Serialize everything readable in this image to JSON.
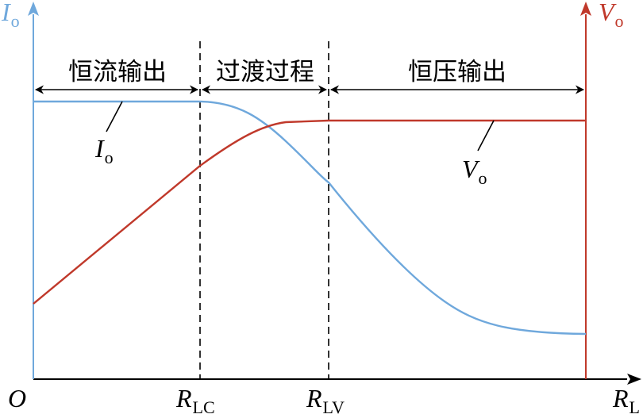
{
  "axes": {
    "origin": "O",
    "x_label": {
      "main": "R",
      "sub": "L"
    },
    "y_left_label": {
      "main": "I",
      "sub": "o"
    },
    "y_right_label": {
      "main": "V",
      "sub": "o"
    }
  },
  "boundaries": [
    {
      "main": "R",
      "sub": "LC"
    },
    {
      "main": "R",
      "sub": "LV"
    }
  ],
  "regions": [
    {
      "label": "恒流输出"
    },
    {
      "label": "过渡过程"
    },
    {
      "label": "恒压输出"
    }
  ],
  "curves": {
    "current": {
      "main": "I",
      "sub": "o",
      "color": "#6fa8dc"
    },
    "voltage": {
      "main": "V",
      "sub": "o",
      "color": "#c0392b"
    }
  },
  "colors": {
    "axis": "#000000",
    "left_axis": "#6fa8dc",
    "right_axis": "#c0392b"
  }
}
